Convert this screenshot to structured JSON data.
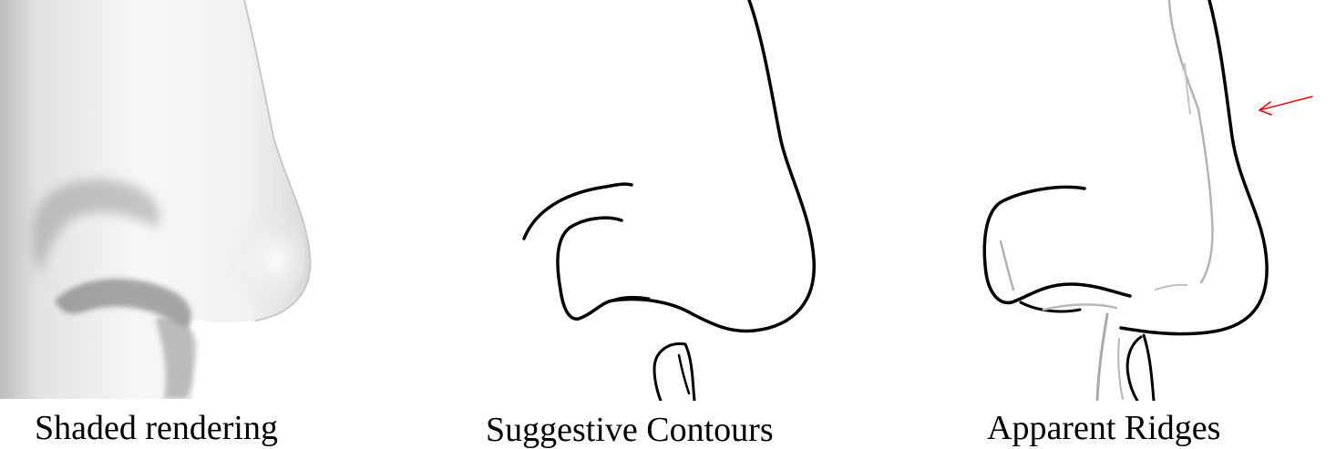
{
  "panels": [
    {
      "id": "shaded",
      "caption": "Shaded rendering"
    },
    {
      "id": "suggestive",
      "caption": "Suggestive Contours"
    },
    {
      "id": "ridges",
      "caption": "Apparent Ridges"
    }
  ],
  "colors": {
    "background": "#ffffff",
    "line": "#000000",
    "ridge_line": "#b3b3b3",
    "shade_light": "#f6f6f6",
    "shade_mid": "#d4d4d4",
    "shade_dark": "#8a8a8a",
    "arrow": "#ff0000"
  }
}
